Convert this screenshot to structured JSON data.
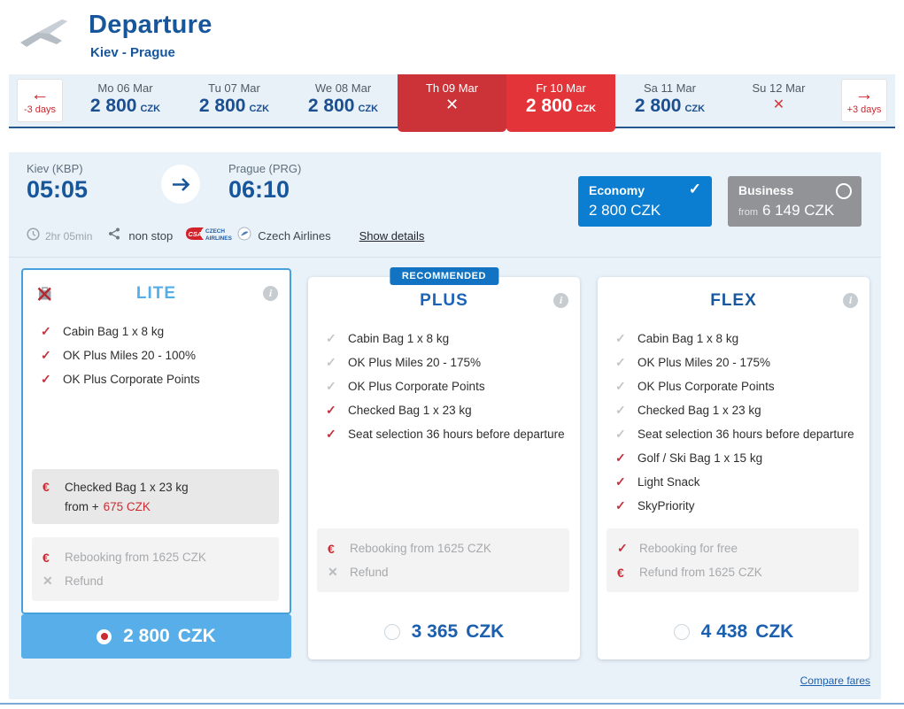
{
  "header": {
    "title": "Departure",
    "route": "Kiev - Prague"
  },
  "date_strip": {
    "prev_label": "-3 days",
    "next_label": "+3 days",
    "days": [
      {
        "label": "Mo 06 Mar",
        "price": "2 800",
        "currency": "CZK",
        "state": "normal"
      },
      {
        "label": "Tu 07 Mar",
        "price": "2 800",
        "currency": "CZK",
        "state": "normal"
      },
      {
        "label": "We 08 Mar",
        "price": "2 800",
        "currency": "CZK",
        "state": "normal"
      },
      {
        "label": "Th 09 Mar",
        "price": "",
        "currency": "",
        "state": "unavailable-active"
      },
      {
        "label": "Fr 10 Mar",
        "price": "2 800",
        "currency": "CZK",
        "state": "selected"
      },
      {
        "label": "Sa 11 Mar",
        "price": "2 800",
        "currency": "CZK",
        "state": "normal"
      },
      {
        "label": "Su 12 Mar",
        "price": "",
        "currency": "",
        "state": "unavailable"
      }
    ]
  },
  "flight": {
    "origin_label": "Kiev (KBP)",
    "origin_time": "05:05",
    "destination_label": "Prague (PRG)",
    "destination_time": "06:10",
    "duration": "2hr 05min",
    "stops": "non stop",
    "airline": "Czech Airlines",
    "show_details_label": "Show details",
    "economy": {
      "label": "Economy",
      "price": "2 800 CZK",
      "selected": true
    },
    "business": {
      "label": "Business",
      "from_label": "from",
      "price": "6 149 CZK",
      "selected": false
    }
  },
  "fares": [
    {
      "id": "lite",
      "title": "LITE",
      "title_color": "#55aee9",
      "badge": "",
      "selected": true,
      "features": [
        {
          "text": "Cabin Bag 1 x 8 kg",
          "check": "red"
        },
        {
          "text": "OK Plus Miles 20 - 100%",
          "check": "red"
        },
        {
          "text": "OK Plus Corporate Points",
          "check": "red"
        }
      ],
      "extra": {
        "icon": "euro",
        "line1": "Checked Bag 1 x 23 kg",
        "prefix": "from +",
        "price": "675 CZK"
      },
      "conditions": [
        {
          "icon": "euro",
          "text": "Rebooking from 1625 CZK"
        },
        {
          "icon": "no-refund",
          "text": "Refund"
        }
      ],
      "price": "2 800",
      "currency": "CZK"
    },
    {
      "id": "plus",
      "title": "PLUS",
      "title_color": "#1b63b8",
      "badge": "RECOMMENDED",
      "selected": false,
      "features": [
        {
          "text": "Cabin Bag 1 x 8 kg",
          "check": "gray"
        },
        {
          "text": "OK Plus Miles 20 - 175%",
          "check": "gray"
        },
        {
          "text": "OK Plus Corporate Points",
          "check": "gray"
        },
        {
          "text": "Checked Bag 1 x 23 kg",
          "check": "red"
        },
        {
          "text": "Seat selection 36 hours before departure",
          "check": "red"
        }
      ],
      "extra": null,
      "conditions": [
        {
          "icon": "euro",
          "text": "Rebooking from 1625 CZK"
        },
        {
          "icon": "no-refund",
          "text": "Refund"
        }
      ],
      "price": "3 365",
      "currency": "CZK"
    },
    {
      "id": "flex",
      "title": "FLEX",
      "title_color": "#17579e",
      "badge": "",
      "selected": false,
      "features": [
        {
          "text": "Cabin Bag 1 x 8 kg",
          "check": "gray"
        },
        {
          "text": "OK Plus Miles 20 - 175%",
          "check": "gray"
        },
        {
          "text": "OK Plus Corporate Points",
          "check": "gray"
        },
        {
          "text": "Checked Bag 1 x 23 kg",
          "check": "gray"
        },
        {
          "text": "Seat selection 36 hours before departure",
          "check": "gray"
        },
        {
          "text": "Golf / Ski Bag 1 x 15 kg",
          "check": "red"
        },
        {
          "text": "Light Snack",
          "check": "red"
        },
        {
          "text": "SkyPriority",
          "check": "red"
        }
      ],
      "extra": null,
      "conditions": [
        {
          "icon": "check-red",
          "text": "Rebooking for free"
        },
        {
          "icon": "euro",
          "text": "Refund from 1625 CZK"
        }
      ],
      "price": "4 438",
      "currency": "CZK"
    }
  ],
  "compare_link": "Compare fares",
  "colors": {
    "navy": "#17569b",
    "price_navy": "#1c4f90",
    "red": "#cc2b33",
    "tab_red_selected": "#e23439",
    "tab_red_dark": "#cb3338",
    "strip_bg": "#e9f1f8",
    "panel_bg": "#eaf2f9",
    "economy_blue": "#0b7ed1",
    "business_gray": "#919396",
    "lite_accent": "#55aee9",
    "badge_blue": "#1173c2",
    "fare_price_blue": "#1b5fae"
  }
}
